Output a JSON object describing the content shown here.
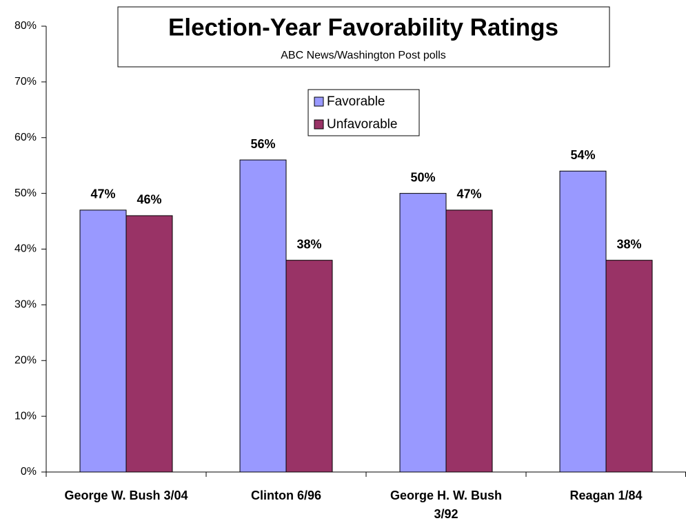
{
  "chart_data": {
    "type": "bar",
    "title": "Election-Year Favorability Ratings",
    "subtitle": "ABC News/Washington Post polls",
    "categories": [
      "George W. Bush 3/04",
      "Clinton 6/96",
      "George H. W. Bush 3/92",
      "Reagan 1/84"
    ],
    "series": [
      {
        "name": "Favorable",
        "color": "#9999ff",
        "values": [
          47,
          56,
          50,
          54
        ],
        "value_labels": [
          "47%",
          "56%",
          "50%",
          "54%"
        ]
      },
      {
        "name": "Unfavorable",
        "color": "#993366",
        "values": [
          46,
          38,
          47,
          38
        ],
        "value_labels": [
          "46%",
          "38%",
          "47%",
          "38%"
        ]
      }
    ],
    "ylim": [
      0,
      80
    ],
    "yticks": [
      {
        "value": 0,
        "label": "0%"
      },
      {
        "value": 10,
        "label": "10%"
      },
      {
        "value": 20,
        "label": "20%"
      },
      {
        "value": 30,
        "label": "30%"
      },
      {
        "value": 40,
        "label": "40%"
      },
      {
        "value": 50,
        "label": "50%"
      },
      {
        "value": 60,
        "label": "60%"
      },
      {
        "value": 70,
        "label": "70%"
      },
      {
        "value": 80,
        "label": "80%"
      }
    ],
    "grid": false
  }
}
